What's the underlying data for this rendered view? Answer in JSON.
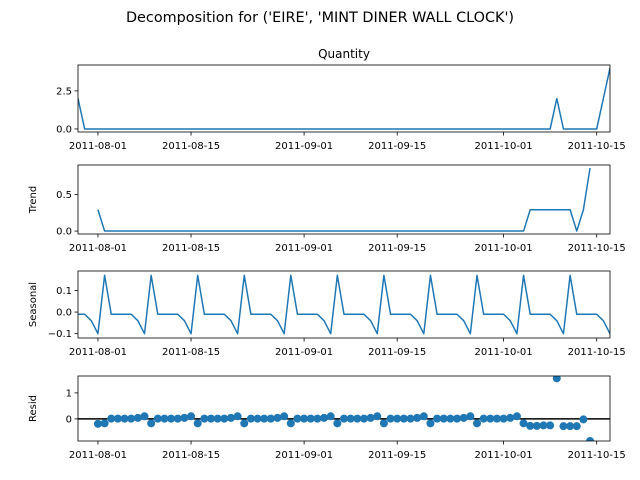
{
  "figure_title": "Decomposition for ('EIRE', 'MINT DINER WALL CLOCK')",
  "colors": {
    "line": "#1f77b4",
    "marker": "#1f77b4",
    "zero_line": "#000000",
    "axes": "#000000"
  },
  "chart_data": [
    {
      "type": "line",
      "title": "Quantity",
      "ylabel": "",
      "x_start": "2011-07-29",
      "x_end": "2011-10-17",
      "xlim": [
        "2011-07-29",
        "2011-10-17"
      ],
      "ylim": [
        -0.2,
        4.2
      ],
      "x_tick_labels": [
        "2011-08-01",
        "2011-08-15",
        "2011-09-01",
        "2011-09-15",
        "2011-10-01",
        "2011-10-15"
      ],
      "y_tick_labels": [
        "0.0",
        "2.5"
      ],
      "y_ticks": [
        0,
        2.5
      ],
      "series": [
        {
          "values": [
            2,
            0,
            0,
            0,
            0,
            0,
            0,
            0,
            0,
            0,
            0,
            0,
            0,
            0,
            0,
            0,
            0,
            0,
            0,
            0,
            0,
            0,
            0,
            0,
            0,
            0,
            0,
            0,
            0,
            0,
            0,
            0,
            0,
            0,
            0,
            0,
            0,
            0,
            0,
            0,
            0,
            0,
            0,
            0,
            0,
            0,
            0,
            0,
            0,
            0,
            0,
            0,
            0,
            0,
            0,
            0,
            0,
            0,
            0,
            0,
            0,
            0,
            0,
            0,
            0,
            0,
            0,
            0,
            0,
            0,
            0,
            0,
            2,
            0,
            0,
            0,
            0,
            0,
            0,
            2,
            4
          ]
        }
      ]
    },
    {
      "type": "line",
      "title": "",
      "ylabel": "Trend",
      "x_start": "2011-07-29",
      "x_end": "2011-10-17",
      "xlim": [
        "2011-07-29",
        "2011-10-17"
      ],
      "ylim": [
        -0.04,
        0.9
      ],
      "x_tick_labels": [
        "2011-08-01",
        "2011-08-15",
        "2011-09-01",
        "2011-09-15",
        "2011-10-01",
        "2011-10-15"
      ],
      "y_tick_labels": [
        "0.0",
        "0.5"
      ],
      "y_ticks": [
        0,
        0.5
      ],
      "series": [
        {
          "values": [
            null,
            null,
            null,
            0.29,
            0,
            0,
            0,
            0,
            0,
            0,
            0,
            0,
            0,
            0,
            0,
            0,
            0,
            0,
            0,
            0,
            0,
            0,
            0,
            0,
            0,
            0,
            0,
            0,
            0,
            0,
            0,
            0,
            0,
            0,
            0,
            0,
            0,
            0,
            0,
            0,
            0,
            0,
            0,
            0,
            0,
            0,
            0,
            0,
            0,
            0,
            0,
            0,
            0,
            0,
            0,
            0,
            0,
            0,
            0,
            0,
            0,
            0,
            0,
            0,
            0,
            0,
            0,
            0,
            0.29,
            0.29,
            0.29,
            0.29,
            0.29,
            0.29,
            0.29,
            0,
            0.29,
            0.86,
            null,
            null,
            null
          ]
        }
      ]
    },
    {
      "type": "line",
      "title": "",
      "ylabel": "Seasonal",
      "x_start": "2011-07-29",
      "x_end": "2011-10-17",
      "xlim": [
        "2011-07-29",
        "2011-10-17"
      ],
      "ylim": [
        -0.12,
        0.19
      ],
      "x_tick_labels": [
        "2011-08-01",
        "2011-08-15",
        "2011-09-01",
        "2011-09-15",
        "2011-10-01",
        "2011-10-15"
      ],
      "y_tick_labels": [
        "−0.1",
        "0.0",
        "0.1"
      ],
      "y_ticks": [
        -0.1,
        0,
        0.1
      ],
      "series": [
        {
          "values": [
            -0.01,
            -0.01,
            -0.04,
            -0.1,
            0.17,
            -0.01,
            -0.01,
            -0.01,
            -0.01,
            -0.04,
            -0.1,
            0.17,
            -0.01,
            -0.01,
            -0.01,
            -0.01,
            -0.04,
            -0.1,
            0.17,
            -0.01,
            -0.01,
            -0.01,
            -0.01,
            -0.04,
            -0.1,
            0.17,
            -0.01,
            -0.01,
            -0.01,
            -0.01,
            -0.04,
            -0.1,
            0.17,
            -0.01,
            -0.01,
            -0.01,
            -0.01,
            -0.04,
            -0.1,
            0.17,
            -0.01,
            -0.01,
            -0.01,
            -0.01,
            -0.04,
            -0.1,
            0.17,
            -0.01,
            -0.01,
            -0.01,
            -0.01,
            -0.04,
            -0.1,
            0.17,
            -0.01,
            -0.01,
            -0.01,
            -0.01,
            -0.04,
            -0.1,
            0.17,
            -0.01,
            -0.01,
            -0.01,
            -0.01,
            -0.04,
            -0.1,
            0.17,
            -0.01,
            -0.01,
            -0.01,
            -0.01,
            -0.04,
            -0.1,
            0.17,
            -0.01,
            -0.01,
            -0.01,
            -0.01,
            -0.04,
            -0.1
          ]
        }
      ]
    },
    {
      "type": "scatter",
      "title": "",
      "ylabel": "Resid",
      "x_start": "2011-07-29",
      "x_end": "2011-10-17",
      "xlim": [
        "2011-07-29",
        "2011-10-17"
      ],
      "ylim": [
        -0.85,
        1.65
      ],
      "x_tick_labels": [
        "2011-08-01",
        "2011-08-15",
        "2011-09-01",
        "2011-09-15",
        "2011-10-01",
        "2011-10-15"
      ],
      "y_tick_labels": [
        "0",
        "1"
      ],
      "y_ticks": [
        0,
        1
      ],
      "zero_line": true,
      "series": [
        {
          "values": [
            null,
            null,
            null,
            -0.19,
            -0.17,
            0.01,
            0.01,
            0.01,
            0.01,
            0.04,
            0.1,
            -0.17,
            0.01,
            0.01,
            0.01,
            0.01,
            0.04,
            0.1,
            -0.17,
            0.01,
            0.01,
            0.01,
            0.01,
            0.04,
            0.1,
            -0.17,
            0.01,
            0.01,
            0.01,
            0.01,
            0.04,
            0.1,
            -0.17,
            0.01,
            0.01,
            0.01,
            0.01,
            0.04,
            0.1,
            -0.17,
            0.01,
            0.01,
            0.01,
            0.01,
            0.04,
            0.1,
            -0.17,
            0.01,
            0.01,
            0.01,
            0.01,
            0.04,
            0.1,
            -0.17,
            0.01,
            0.01,
            0.01,
            0.01,
            0.04,
            0.1,
            -0.17,
            0.01,
            0.01,
            0.01,
            0.01,
            0.04,
            0.1,
            -0.17,
            -0.27,
            -0.27,
            -0.25,
            -0.25,
            1.56,
            -0.28,
            -0.28,
            -0.28,
            -0.02,
            -0.85,
            null,
            null,
            null
          ]
        }
      ]
    }
  ]
}
